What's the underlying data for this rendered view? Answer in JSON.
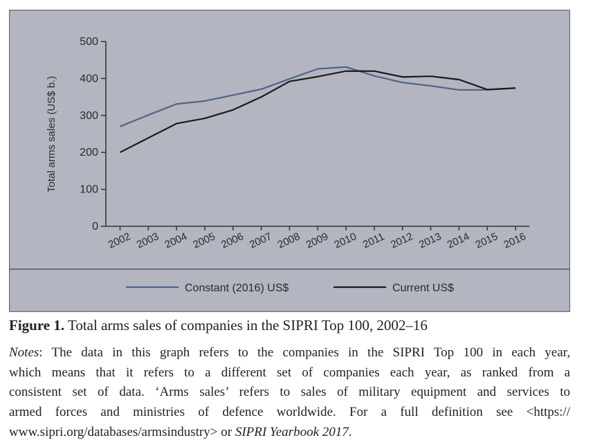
{
  "chart_data": {
    "type": "line",
    "x": [
      2002,
      2003,
      2004,
      2005,
      2006,
      2007,
      2008,
      2009,
      2010,
      2011,
      2012,
      2013,
      2014,
      2015,
      2016
    ],
    "x_tick_labels": [
      "2002",
      "2003",
      "2004",
      "2005",
      "2006",
      "2007",
      "2008",
      "2009",
      "2010",
      "2011",
      "2012",
      "2013",
      "2014",
      "2015",
      "2016"
    ],
    "ylabel": "Total arms sales (US$ b.)",
    "xlabel": "",
    "ylim": [
      0,
      500
    ],
    "y_ticks": [
      "0",
      "100",
      "200",
      "300",
      "400",
      "500"
    ],
    "grid": false,
    "legend_placement": "bottom",
    "series": [
      {
        "name": "Constant (2016) US$",
        "color": "#4d6582",
        "values": [
          270,
          301,
          331,
          339,
          355,
          371,
          399,
          426,
          431,
          407,
          389,
          380,
          369,
          369,
          374
        ]
      },
      {
        "name": "Current US$",
        "color": "#1a1a1a",
        "values": [
          200,
          239,
          278,
          292,
          315,
          350,
          392,
          405,
          420,
          420,
          404,
          406,
          397,
          370,
          374
        ]
      }
    ],
    "background_color": "#b3b5c1"
  },
  "caption": {
    "label": "Figure 1.",
    "text": " Total arms sales of companies in the SIPRI Top 100, 2002–16"
  },
  "notes": {
    "line1_italic": "Notes",
    "line1": ": The data in this graph refers to the companies in the SIPRI Top 100 in each year,",
    "line2": "which means that it refers to a different set of companies each year, as ranked from a",
    "line3": "consistent set of data. ‘Arms sales’ refers to sales of military equipment and services to",
    "line4": "armed forces and ministries of defence worldwide. For a full definition see <https://",
    "line5": "www.sipri.org/databases/armsindustry> or ",
    "line5_italic": "SIPRI Yearbook 2017",
    "line5_end": "."
  }
}
